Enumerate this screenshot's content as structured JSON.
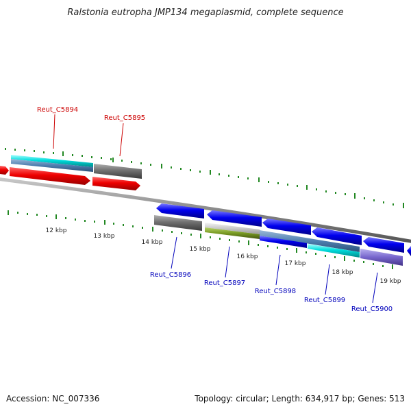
{
  "title": "Ralstonia eutropha JMP134 megaplasmid, complete sequence",
  "footer": {
    "accession": "Accession: NC_007336",
    "summary": "Topology: circular; Length: 634,917 bp; Genes: 513"
  },
  "colors": {
    "backbone": "#888888",
    "tick": "#228822",
    "forward_label": "#cc0000",
    "reverse_label": "#0000bb",
    "red_feature": "#ee0000",
    "blue_feature": "#0000ee",
    "cyan_feature": "#00dddd",
    "grey_feature": "#707070",
    "olive_feature": "#779922",
    "light_grey_feature": "#c8c8c8",
    "purple_feature": "#7766cc"
  },
  "scale_labels": [
    "12 kbp",
    "13 kbp",
    "14 kbp",
    "15 kbp",
    "16 kbp",
    "17 kbp",
    "18 kbp",
    "19 kbp"
  ],
  "gene_labels": {
    "forward": [
      "Reut_C5894",
      "Reut_C5895"
    ],
    "reverse": [
      "Reut_C5896",
      "Reut_C5897",
      "Reut_C5898",
      "Reut_C5899",
      "Reut_C5900"
    ]
  }
}
